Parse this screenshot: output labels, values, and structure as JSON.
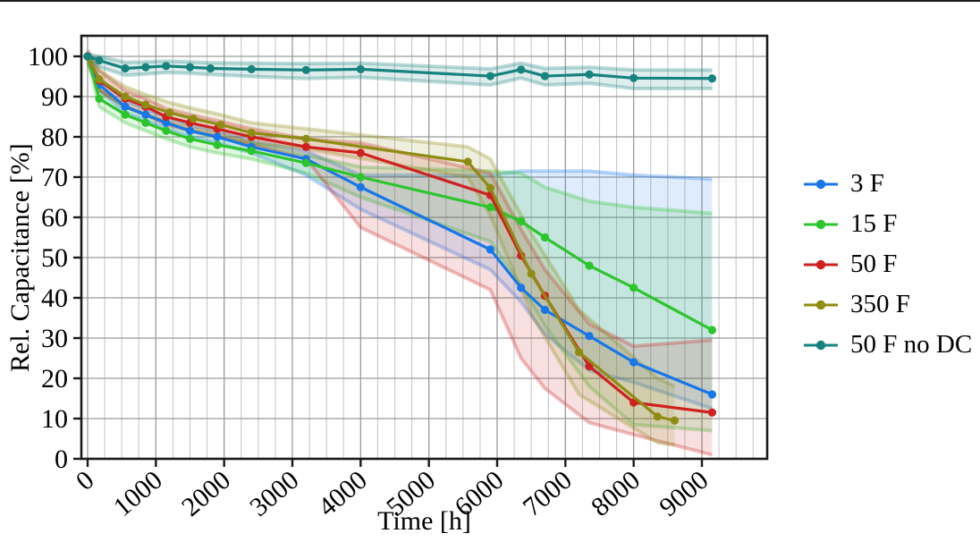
{
  "figure": {
    "background": "#ffffff",
    "border_top_color": "#1a1a1a"
  },
  "chart_data": {
    "type": "line",
    "title": "",
    "xlabel": "Time [h]",
    "ylabel": "Rel. Capacitance [%]",
    "xlim": [
      -100,
      9950
    ],
    "ylim": [
      0,
      105
    ],
    "x_ticks": [
      0,
      1000,
      2000,
      3000,
      4000,
      5000,
      6000,
      7000,
      8000,
      9000
    ],
    "y_ticks": [
      0,
      10,
      20,
      30,
      40,
      50,
      60,
      70,
      80,
      90,
      100
    ],
    "x_minor_step": 250,
    "grid": true,
    "grid_minor_color": "#c9c9c9",
    "grid_major_color": "#9a9a9a",
    "axis_color": "#1a1a1a",
    "legend_position": "right",
    "series": [
      {
        "name": "3 F",
        "color": "#1777e8",
        "x": [
          0,
          170,
          550,
          850,
          1150,
          1500,
          1900,
          2400,
          3200,
          4000,
          5900,
          6350,
          6700,
          7350,
          8000,
          9150
        ],
        "y": [
          100,
          93,
          87.5,
          85.5,
          83.5,
          81.5,
          80,
          77.5,
          74.5,
          67.5,
          52,
          42.5,
          37,
          30.5,
          24,
          16
        ],
        "band_upper": [
          100.5,
          94.5,
          89,
          87,
          85,
          83,
          81.5,
          79,
          76.5,
          70.5,
          70.5,
          71.5,
          71.5,
          71.5,
          70.5,
          69.5
        ],
        "band_lower": [
          99.5,
          91.5,
          86,
          84,
          82,
          80,
          78.5,
          76,
          70.5,
          62,
          47,
          39,
          31,
          22,
          19,
          12.5
        ]
      },
      {
        "name": "15 F",
        "color": "#2cc52c",
        "x": [
          0,
          170,
          550,
          850,
          1150,
          1500,
          1900,
          2400,
          3200,
          4000,
          5900,
          6350,
          6700,
          7350,
          8000,
          9150
        ],
        "y": [
          100,
          89.5,
          85.5,
          83.5,
          81.5,
          79.5,
          78,
          76.5,
          73.5,
          70,
          62.5,
          59,
          55,
          48,
          42.5,
          32
        ],
        "band_upper": [
          100.5,
          91.5,
          87.5,
          85.5,
          83.5,
          81.5,
          80,
          78.5,
          75.5,
          72.5,
          71.5,
          71,
          67.5,
          64,
          62.5,
          61
        ],
        "band_lower": [
          99.5,
          87.5,
          83.5,
          81.5,
          79.5,
          77.5,
          76,
          74.5,
          71,
          65,
          54,
          43,
          33,
          18,
          8.5,
          7
        ]
      },
      {
        "name": "50 F",
        "color": "#ce2120",
        "x": [
          0,
          170,
          550,
          850,
          1150,
          1500,
          1900,
          2400,
          3200,
          4000,
          5900,
          6350,
          6700,
          7350,
          8000,
          9150
        ],
        "y": [
          100,
          94,
          89.5,
          87.5,
          85,
          83.5,
          82,
          80,
          77.5,
          76,
          65.5,
          50.5,
          40.5,
          23,
          14,
          11.5
        ],
        "band_upper": [
          101.5,
          96.5,
          91.5,
          89.5,
          87,
          85.5,
          84,
          82,
          79.5,
          78.5,
          71,
          57,
          47,
          33.5,
          28,
          29.5
        ],
        "band_lower": [
          98.5,
          91.5,
          87.5,
          85.5,
          83,
          81.5,
          80,
          78,
          74.5,
          57.5,
          42,
          25,
          17.5,
          9,
          6,
          1
        ]
      },
      {
        "name": "350 F",
        "color": "#8f8c14",
        "x": [
          0,
          170,
          550,
          850,
          1200,
          1550,
          1950,
          2400,
          3200,
          5570,
          5900,
          6500,
          7200,
          8350,
          8600
        ],
        "y": [
          100,
          94.3,
          90,
          88,
          86,
          84.5,
          83,
          81,
          79.5,
          73.8,
          67.3,
          46,
          26.5,
          10.5,
          9.5
        ],
        "band_upper": [
          100.5,
          96.5,
          92.5,
          90.5,
          88.5,
          87,
          85.5,
          83.5,
          82,
          77.5,
          74.5,
          56,
          37,
          20,
          18
        ],
        "band_lower": [
          99.5,
          92,
          87.5,
          85.5,
          83.5,
          82,
          80.5,
          78.5,
          77,
          70,
          60.5,
          36,
          16,
          4,
          3.5
        ]
      },
      {
        "name": "50 F no DC",
        "color": "#17837e",
        "x": [
          0,
          170,
          550,
          850,
          1150,
          1500,
          1800,
          2400,
          3200,
          4000,
          5900,
          6350,
          6700,
          7350,
          8000,
          9150
        ],
        "y": [
          100,
          99,
          97,
          97.3,
          97.6,
          97.3,
          97,
          96.8,
          96.6,
          96.8,
          95.1,
          96.7,
          95.1,
          95.5,
          94.6,
          94.5
        ],
        "band_upper": [
          100.5,
          100,
          98.5,
          98.6,
          98.8,
          98.6,
          98.4,
          98.3,
          98.2,
          98.3,
          96.9,
          98.3,
          97,
          97.3,
          96.6,
          96.6
        ],
        "band_lower": [
          99.5,
          97.4,
          95.3,
          95.6,
          96,
          95.8,
          95.5,
          95,
          94.5,
          94.8,
          92.9,
          94.6,
          92.9,
          93.3,
          92,
          92
        ]
      }
    ]
  }
}
